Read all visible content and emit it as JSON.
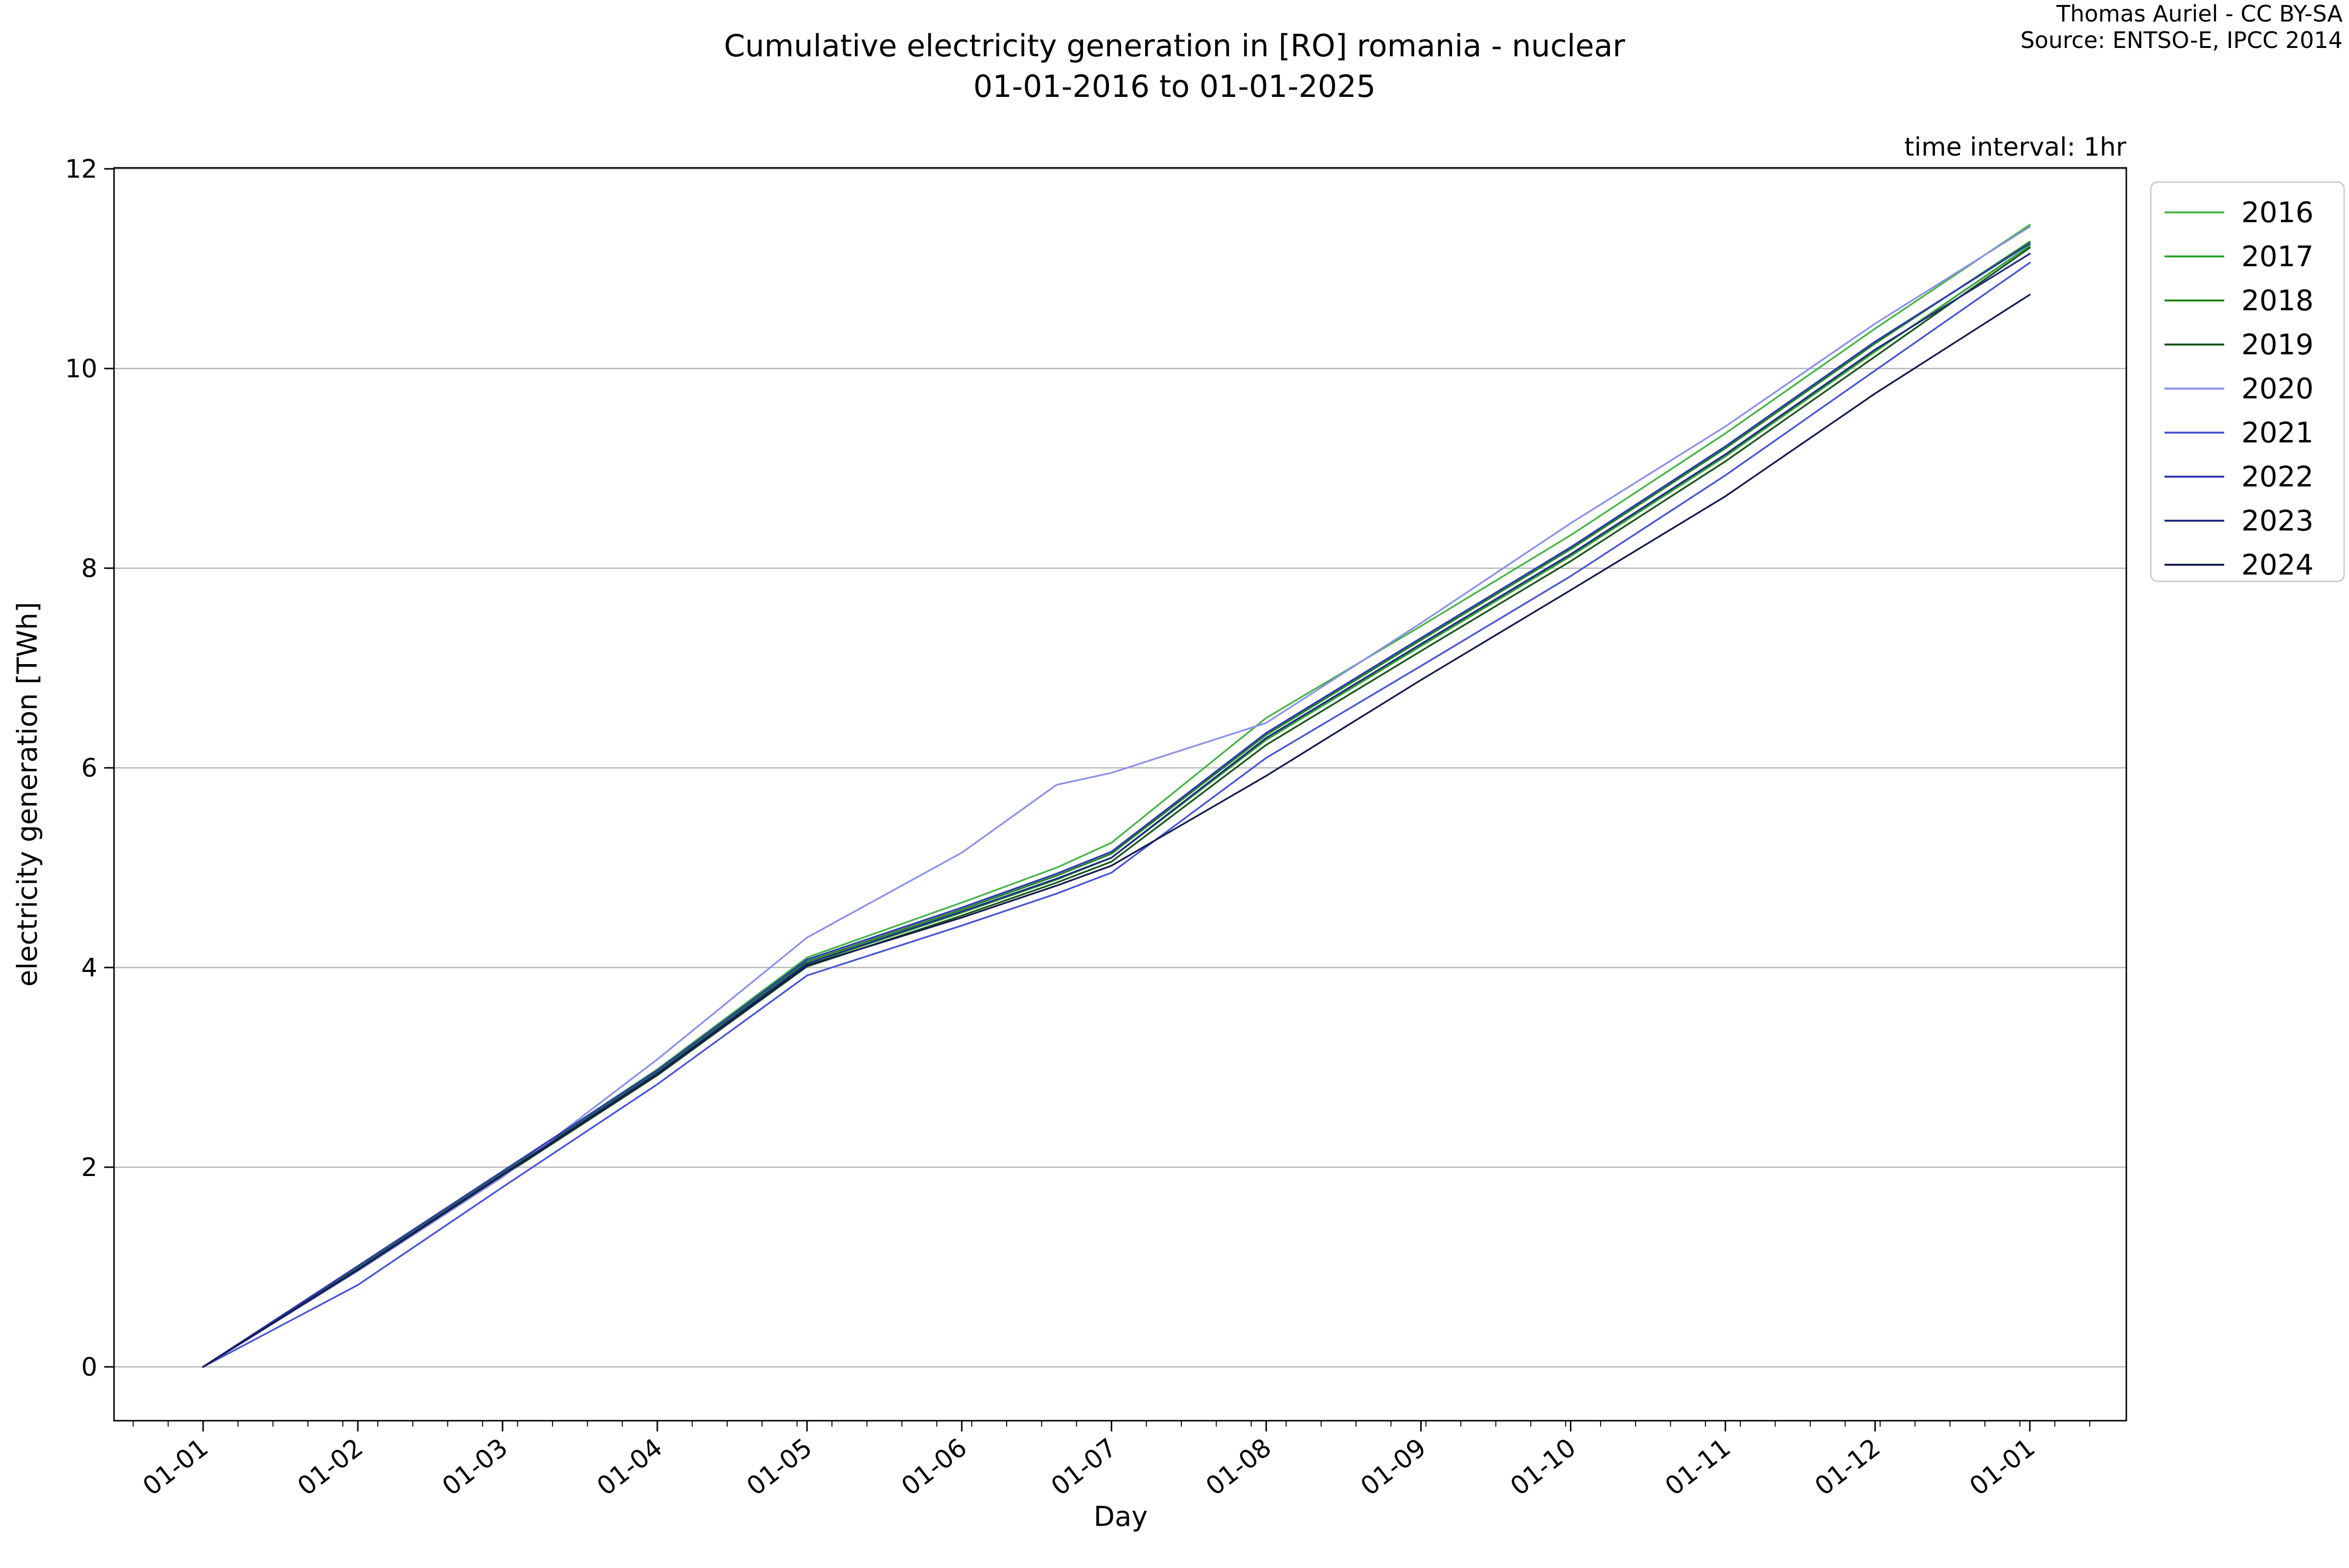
{
  "title": {
    "line1": "Cumulative electricity generation in [RO] romania - nuclear",
    "line2": "01-01-2016 to 01-01-2025"
  },
  "attribution": {
    "line1": "Thomas Auriel - CC BY-SA",
    "line2": "Source: ENTSO-E, IPCC 2014"
  },
  "annotation": {
    "time_interval": "time interval: 1hr"
  },
  "chart_data": {
    "type": "line",
    "title": "Cumulative electricity generation in [RO] romania - nuclear 01-01-2016 to 01-01-2025",
    "xlabel": "Day",
    "ylabel": "electricity generation [TWh]",
    "grid": "horizontal",
    "legend_position": "right",
    "ylim": [
      -0.55,
      12.05
    ],
    "xlim_days": [
      -18,
      385
    ],
    "y_ticks": [
      0,
      2,
      4,
      6,
      8,
      10,
      12
    ],
    "x_tick_days": [
      0,
      31,
      60,
      91,
      121,
      152,
      182,
      213,
      244,
      274,
      305,
      335,
      366
    ],
    "x_tick_labels": [
      "01-01",
      "01-02",
      "01-03",
      "01-04",
      "01-05",
      "01-06",
      "01-07",
      "01-08",
      "01-09",
      "01-10",
      "01-11",
      "01-12",
      "01-01"
    ],
    "x_minor_tick_step_days": 7,
    "sample_days": [
      0,
      31,
      60,
      91,
      121,
      152,
      171,
      182,
      213,
      244,
      274,
      305,
      335,
      366
    ],
    "series": [
      {
        "name": "2016",
        "color": "#45b345",
        "values": [
          0,
          1.0,
          1.95,
          2.98,
          4.1,
          4.65,
          5.0,
          5.25,
          6.5,
          7.42,
          8.33,
          9.35,
          10.4,
          11.44
        ]
      },
      {
        "name": "2017",
        "color": "#2da32d",
        "values": [
          0,
          0.98,
          1.92,
          2.93,
          4.03,
          4.55,
          4.88,
          5.1,
          6.28,
          7.22,
          8.12,
          9.12,
          10.17,
          11.23
        ]
      },
      {
        "name": "2018",
        "color": "#1d851f",
        "values": [
          0,
          0.99,
          1.94,
          2.96,
          4.06,
          4.58,
          4.92,
          5.14,
          6.33,
          7.28,
          8.19,
          9.2,
          10.25,
          11.27
        ]
      },
      {
        "name": "2019",
        "color": "#175417",
        "values": [
          0,
          0.97,
          1.91,
          2.92,
          4.01,
          4.52,
          4.85,
          5.06,
          6.23,
          7.17,
          8.07,
          9.07,
          10.12,
          11.21
        ]
      },
      {
        "name": "2020",
        "color": "#8a90e8",
        "values": [
          0,
          0.96,
          1.9,
          3.08,
          4.3,
          5.15,
          5.83,
          5.95,
          6.45,
          7.45,
          8.45,
          9.42,
          10.45,
          11.42
        ]
      },
      {
        "name": "2021",
        "color": "#4853d4",
        "values": [
          0,
          0.82,
          1.8,
          2.83,
          3.92,
          4.42,
          4.74,
          4.95,
          6.1,
          7.02,
          7.92,
          8.93,
          9.98,
          11.06
        ]
      },
      {
        "name": "2022",
        "color": "#2e38ae",
        "values": [
          0,
          1.01,
          1.96,
          2.97,
          4.08,
          4.6,
          4.94,
          5.16,
          6.35,
          7.3,
          8.21,
          9.22,
          10.27,
          11.25
        ]
      },
      {
        "name": "2023",
        "color": "#1f2a80",
        "values": [
          0,
          0.98,
          1.93,
          2.94,
          4.04,
          4.56,
          4.89,
          5.1,
          6.3,
          7.24,
          8.14,
          9.14,
          10.19,
          11.15
        ]
      },
      {
        "name": "2024",
        "color": "#141b4d",
        "values": [
          0,
          0.97,
          1.92,
          2.93,
          4.02,
          4.5,
          4.82,
          5.02,
          5.92,
          6.88,
          7.78,
          8.72,
          9.75,
          10.74
        ]
      }
    ],
    "style": {
      "grid_color": "#b4b4b4",
      "spine_color": "#000000",
      "legend_border_color": "#cccccc",
      "line_width": 3.5
    }
  }
}
